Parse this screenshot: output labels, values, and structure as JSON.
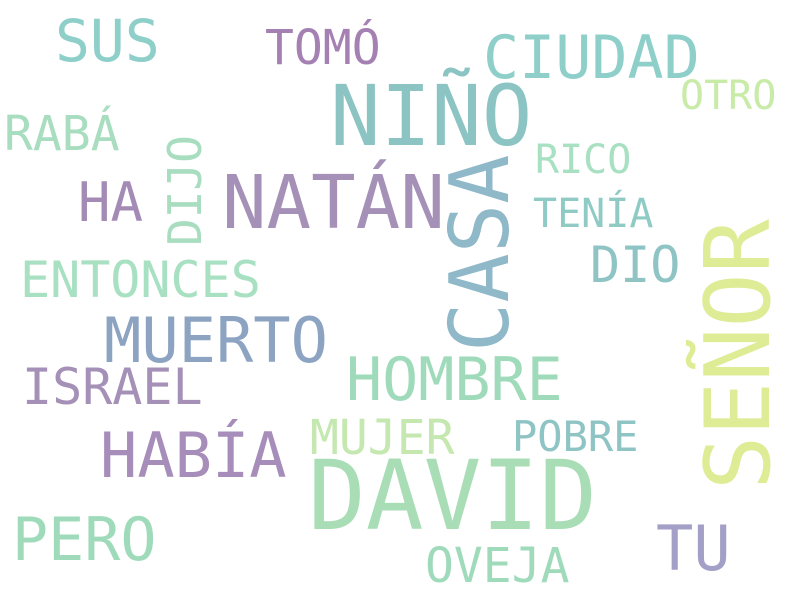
{
  "words": {
    "nino": {
      "text": "NIÑO",
      "color": "#8cc4c4"
    },
    "david": {
      "text": "DAVID",
      "color": "#a8ddb5"
    },
    "natan": {
      "text": "NATÁN",
      "color": "#a591b7"
    },
    "casa": {
      "text": "CASA",
      "color": "#8fb8c9"
    },
    "senor": {
      "text": "SEÑOR",
      "color": "#ddec95"
    },
    "ciudad": {
      "text": "CIUDAD",
      "color": "#8ecfc9"
    },
    "hombre": {
      "text": "HOMBRE",
      "color": "#9fdbbb"
    },
    "muerto": {
      "text": "MUERTO",
      "color": "#8da3c2"
    },
    "habia": {
      "text": "HABÍA",
      "color": "#a68dba"
    },
    "sus": {
      "text": "SUS",
      "color": "#8ecfc9"
    },
    "tomo": {
      "text": "TOMÓ",
      "color": "#a580b2"
    },
    "entonces": {
      "text": "ENTONCES",
      "color": "#a8e0c2"
    },
    "israel": {
      "text": "ISRAEL",
      "color": "#a591b7"
    },
    "pero": {
      "text": "PERO",
      "color": "#9fdbbb"
    },
    "tu": {
      "text": "TU",
      "color": "#a39fc7"
    },
    "oveja": {
      "text": "OVEJA",
      "color": "#9fdbbb"
    },
    "mujer": {
      "text": "MUJER",
      "color": "#c4e8b0"
    },
    "pobre": {
      "text": "POBRE",
      "color": "#8fc4c4"
    },
    "raba": {
      "text": "RABÁ",
      "color": "#a8ddc0"
    },
    "dijo": {
      "text": "DIJO",
      "color": "#a8ddc0"
    },
    "ha": {
      "text": "HA",
      "color": "#a38bb5"
    },
    "dio": {
      "text": "DIO",
      "color": "#8fc4c4"
    },
    "rico": {
      "text": "RICO",
      "color": "#a8e0c2"
    },
    "tenia": {
      "text": "TENÍA",
      "color": "#8fcbc4"
    },
    "otro": {
      "text": "OTRO",
      "color": "#c8eba8"
    }
  }
}
